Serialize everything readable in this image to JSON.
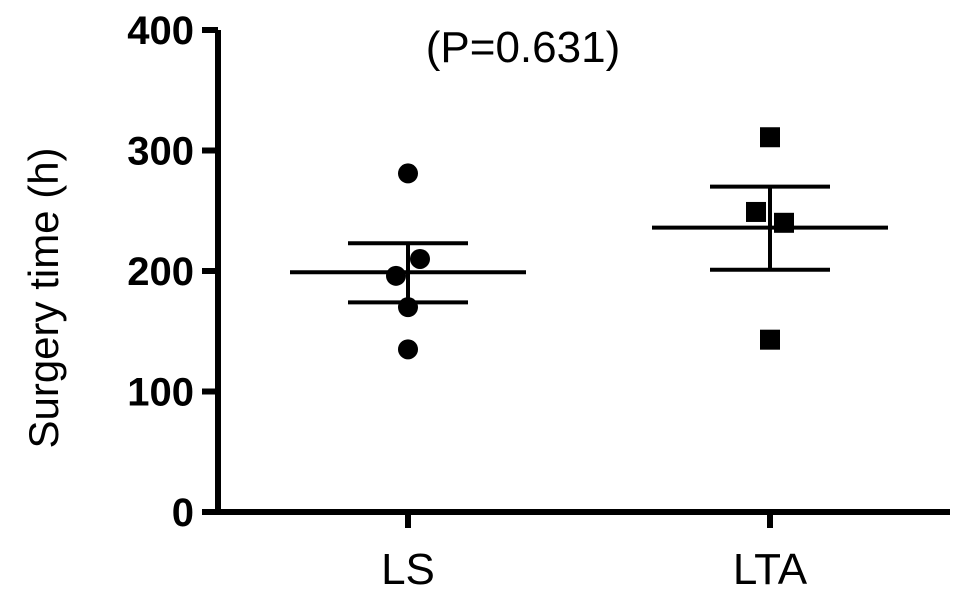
{
  "chart_data": {
    "type": "scatter",
    "ylabel": "Surgery time (h)",
    "ylim": [
      0,
      400
    ],
    "yticks": [
      "0",
      "100",
      "200",
      "300",
      "400"
    ],
    "categories": [
      "LS",
      "LTA"
    ],
    "annotation": "(P=0.631)",
    "grid": false,
    "series": [
      {
        "category": "LS",
        "marker": "circle",
        "points": [
          281,
          210,
          196,
          170,
          135
        ],
        "mean": 199,
        "sem_upper": 223,
        "sem_lower": 174
      },
      {
        "category": "LTA",
        "marker": "square",
        "points": [
          311,
          249,
          240,
          143
        ],
        "mean": 236,
        "sem_upper": 270,
        "sem_lower": 201
      }
    ]
  }
}
